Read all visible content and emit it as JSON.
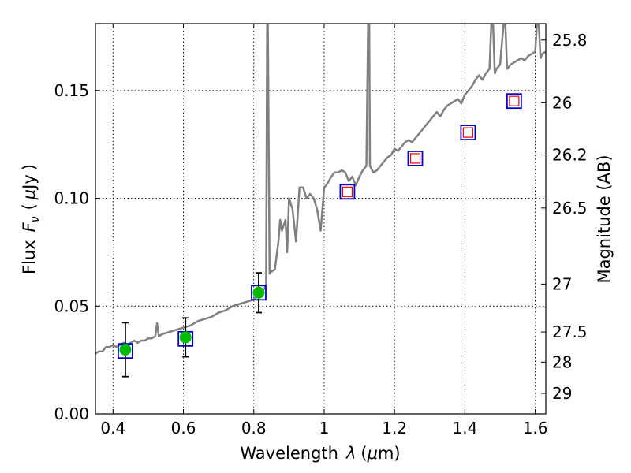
{
  "chart_data": {
    "type": "scatter",
    "xlabel_text": "Wavelength",
    "xlabel_symbol": "λ",
    "xlabel_unit_open": "(",
    "xlabel_unit_mu": "μ",
    "xlabel_unit_rest": "m)",
    "ylabel_text": "Flux",
    "ylabel_symbol": "F",
    "ylabel_subscript": "ν",
    "ylabel_unit_open": "(",
    "ylabel_unit_mu": "μ",
    "ylabel_unit_rest": "Jy",
    "ylabel_unit_close": ")",
    "y2label": "Magnitude (AB)",
    "xlim": [
      0.35,
      1.63
    ],
    "ylim": [
      0.0,
      0.181
    ],
    "grid": true,
    "xticks": [
      {
        "value": 0.4,
        "label": "0.4"
      },
      {
        "value": 0.6,
        "label": "0.6"
      },
      {
        "value": 0.8,
        "label": "0.8"
      },
      {
        "value": 1.0,
        "label": "1"
      },
      {
        "value": 1.2,
        "label": "1.2"
      },
      {
        "value": 1.4,
        "label": "1.4"
      },
      {
        "value": 1.6,
        "label": "1.6"
      }
    ],
    "yticks": [
      {
        "value": 0.0,
        "label": "0.00"
      },
      {
        "value": 0.05,
        "label": "0.05"
      },
      {
        "value": 0.1,
        "label": "0.10"
      },
      {
        "value": 0.15,
        "label": "0.15"
      }
    ],
    "y2ticks": [
      {
        "flux": 0.1734,
        "label": "25.8"
      },
      {
        "flux": 0.1443,
        "label": "26"
      },
      {
        "flux": 0.1201,
        "label": "26.2"
      },
      {
        "flux": 0.0955,
        "label": "26.5"
      },
      {
        "flux": 0.0602,
        "label": "27"
      },
      {
        "flux": 0.038,
        "label": "27.5"
      },
      {
        "flux": 0.024,
        "label": "28"
      },
      {
        "flux": 0.0095,
        "label": "29"
      }
    ],
    "series": [
      {
        "kind": "model-spectrum",
        "color": "#808080",
        "points": [
          [
            0.35,
            0.028
          ],
          [
            0.36,
            0.029
          ],
          [
            0.37,
            0.029
          ],
          [
            0.38,
            0.031
          ],
          [
            0.39,
            0.031
          ],
          [
            0.4,
            0.032
          ],
          [
            0.41,
            0.031
          ],
          [
            0.42,
            0.032
          ],
          [
            0.43,
            0.033
          ],
          [
            0.44,
            0.032
          ],
          [
            0.45,
            0.033
          ],
          [
            0.46,
            0.034
          ],
          [
            0.47,
            0.033
          ],
          [
            0.48,
            0.034
          ],
          [
            0.49,
            0.034
          ],
          [
            0.5,
            0.035
          ],
          [
            0.51,
            0.035
          ],
          [
            0.52,
            0.036
          ],
          [
            0.525,
            0.042
          ],
          [
            0.53,
            0.036
          ],
          [
            0.54,
            0.037
          ],
          [
            0.56,
            0.038
          ],
          [
            0.58,
            0.039
          ],
          [
            0.6,
            0.04
          ],
          [
            0.62,
            0.041
          ],
          [
            0.64,
            0.043
          ],
          [
            0.66,
            0.044
          ],
          [
            0.68,
            0.045
          ],
          [
            0.7,
            0.047
          ],
          [
            0.72,
            0.048
          ],
          [
            0.74,
            0.05
          ],
          [
            0.76,
            0.051
          ],
          [
            0.78,
            0.052
          ],
          [
            0.8,
            0.053
          ],
          [
            0.81,
            0.055
          ],
          [
            0.82,
            0.057
          ],
          [
            0.83,
            0.058
          ],
          [
            0.835,
            0.06
          ],
          [
            0.838,
            0.181
          ],
          [
            0.84,
            0.181
          ],
          [
            0.845,
            0.065
          ],
          [
            0.85,
            0.066
          ],
          [
            0.86,
            0.067
          ],
          [
            0.87,
            0.08
          ],
          [
            0.875,
            0.09
          ],
          [
            0.88,
            0.085
          ],
          [
            0.89,
            0.09
          ],
          [
            0.895,
            0.075
          ],
          [
            0.9,
            0.1
          ],
          [
            0.91,
            0.095
          ],
          [
            0.92,
            0.08
          ],
          [
            0.93,
            0.105
          ],
          [
            0.94,
            0.105
          ],
          [
            0.95,
            0.1
          ],
          [
            0.96,
            0.102
          ],
          [
            0.97,
            0.1
          ],
          [
            0.98,
            0.095
          ],
          [
            0.99,
            0.085
          ],
          [
            1.0,
            0.105
          ],
          [
            1.01,
            0.107
          ],
          [
            1.02,
            0.11
          ],
          [
            1.03,
            0.112
          ],
          [
            1.04,
            0.112
          ],
          [
            1.05,
            0.113
          ],
          [
            1.06,
            0.112
          ],
          [
            1.07,
            0.108
          ],
          [
            1.08,
            0.11
          ],
          [
            1.09,
            0.106
          ],
          [
            1.1,
            0.11
          ],
          [
            1.11,
            0.113
          ],
          [
            1.12,
            0.115
          ],
          [
            1.125,
            0.181
          ],
          [
            1.128,
            0.181
          ],
          [
            1.13,
            0.115
          ],
          [
            1.14,
            0.112
          ],
          [
            1.15,
            0.113
          ],
          [
            1.16,
            0.115
          ],
          [
            1.17,
            0.117
          ],
          [
            1.18,
            0.119
          ],
          [
            1.19,
            0.12
          ],
          [
            1.2,
            0.123
          ],
          [
            1.21,
            0.122
          ],
          [
            1.22,
            0.124
          ],
          [
            1.23,
            0.126
          ],
          [
            1.24,
            0.127
          ],
          [
            1.25,
            0.126
          ],
          [
            1.26,
            0.128
          ],
          [
            1.27,
            0.13
          ],
          [
            1.28,
            0.132
          ],
          [
            1.29,
            0.134
          ],
          [
            1.3,
            0.136
          ],
          [
            1.31,
            0.138
          ],
          [
            1.32,
            0.14
          ],
          [
            1.33,
            0.138
          ],
          [
            1.34,
            0.141
          ],
          [
            1.35,
            0.143
          ],
          [
            1.36,
            0.144
          ],
          [
            1.37,
            0.145
          ],
          [
            1.38,
            0.146
          ],
          [
            1.39,
            0.144
          ],
          [
            1.4,
            0.148
          ],
          [
            1.41,
            0.15
          ],
          [
            1.42,
            0.152
          ],
          [
            1.43,
            0.155
          ],
          [
            1.44,
            0.157
          ],
          [
            1.45,
            0.155
          ],
          [
            1.46,
            0.158
          ],
          [
            1.47,
            0.16
          ],
          [
            1.475,
            0.181
          ],
          [
            1.48,
            0.181
          ],
          [
            1.485,
            0.158
          ],
          [
            1.49,
            0.16
          ],
          [
            1.5,
            0.162
          ],
          [
            1.51,
            0.181
          ],
          [
            1.515,
            0.181
          ],
          [
            1.52,
            0.16
          ],
          [
            1.53,
            0.162
          ],
          [
            1.54,
            0.163
          ],
          [
            1.55,
            0.164
          ],
          [
            1.56,
            0.165
          ],
          [
            1.57,
            0.164
          ],
          [
            1.58,
            0.166
          ],
          [
            1.59,
            0.167
          ],
          [
            1.6,
            0.168
          ],
          [
            1.605,
            0.181
          ],
          [
            1.61,
            0.181
          ],
          [
            1.615,
            0.165
          ],
          [
            1.62,
            0.167
          ],
          [
            1.63,
            0.168
          ]
        ]
      },
      {
        "kind": "model-photometry",
        "marker": "square",
        "color": "#0000cc",
        "points": [
          [
            0.435,
            0.0292
          ],
          [
            0.606,
            0.0348
          ],
          [
            0.814,
            0.0562
          ],
          [
            1.066,
            0.103
          ],
          [
            1.259,
            0.1185
          ],
          [
            1.409,
            0.1305
          ],
          [
            1.54,
            0.1451
          ]
        ]
      },
      {
        "kind": "inner-squares",
        "marker": "square",
        "color": "#ff0000",
        "points": [
          [
            1.066,
            0.103
          ],
          [
            1.259,
            0.1185
          ],
          [
            1.409,
            0.1305
          ],
          [
            1.54,
            0.1451
          ]
        ]
      },
      {
        "kind": "observed-photometry",
        "marker": "circle",
        "color": "#00bb00",
        "points": [
          {
            "x": 0.435,
            "y": 0.0298,
            "err": 0.0125
          },
          {
            "x": 0.606,
            "y": 0.0355,
            "err": 0.009
          },
          {
            "x": 0.814,
            "y": 0.0562,
            "err": 0.0092
          }
        ]
      }
    ]
  }
}
